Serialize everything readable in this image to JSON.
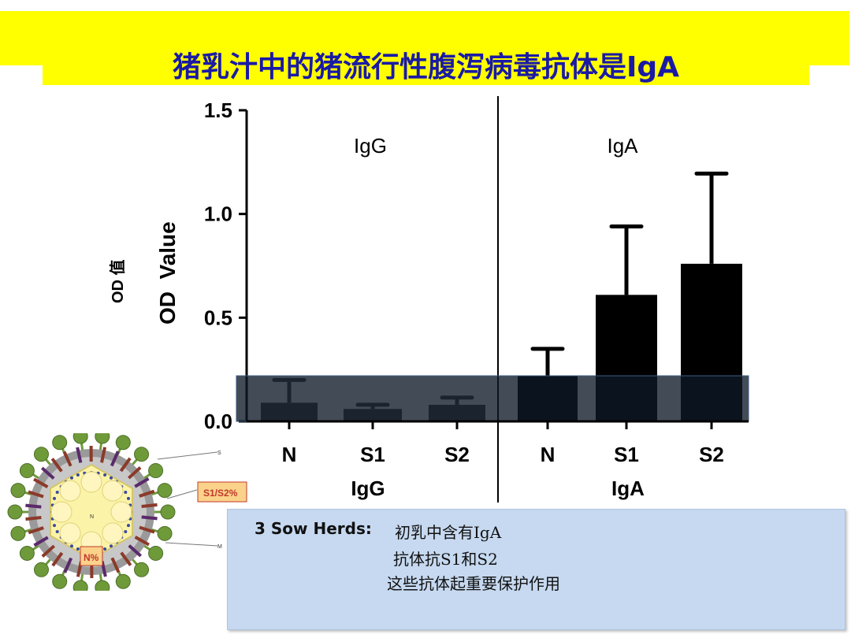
{
  "slide": {
    "title": "猪乳汁中的猪流行性腹泻病毒抗体是IgA",
    "axis_note_cn": "OD 值",
    "info": {
      "lead": "3 Sow Herds:",
      "line1": "初乳中含有IgA",
      "line2": "抗体抗S1和S2",
      "line3": "这些抗体起重要保护作用"
    }
  },
  "virus_diagram": {
    "labels": {
      "s": "S",
      "m": "M",
      "n": "N",
      "s1s2": "S1/S2%",
      "n_pct": "N%"
    },
    "colors": {
      "spike": "#6f9a3a",
      "stem": "#8b3a2a",
      "envelope": "#9a9a9a",
      "core": "#fbf3a8",
      "callout": "#fbd28a"
    }
  },
  "chart_data": {
    "type": "bar",
    "ylabel": "OD  Value",
    "ylim": [
      0,
      1.5
    ],
    "yticks": [
      "0.0",
      "0.5",
      "1.0",
      "1.5"
    ],
    "panels": [
      {
        "name": "IgG",
        "categories": [
          "N",
          "S1",
          "S2"
        ],
        "values": [
          0.09,
          0.06,
          0.08
        ],
        "errors": [
          0.2,
          0.08,
          0.115
        ]
      },
      {
        "name": "IgA",
        "categories": [
          "N",
          "S1",
          "S2"
        ],
        "values": [
          0.22,
          0.61,
          0.76
        ],
        "errors": [
          0.35,
          0.94,
          1.195
        ]
      }
    ],
    "highlight": {
      "y_top": 0.22
    },
    "colors": {
      "igg_bar": "#4a4a4a",
      "iga_bar": "#000000",
      "axis": "#000000",
      "shade": "#0e1a26"
    }
  }
}
